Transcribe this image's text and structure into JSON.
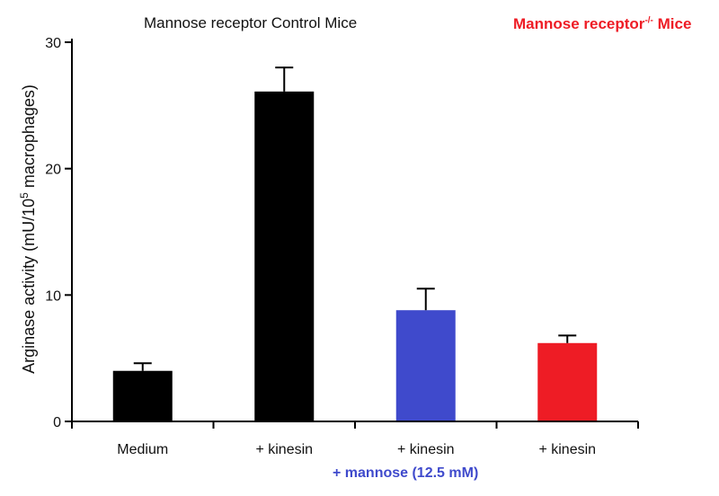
{
  "chart_data": {
    "type": "bar",
    "title_left": "Mannose receptor Control Mice",
    "title_right": {
      "base": "Mannose receptor",
      "superscript": "-/-",
      "suffix": " Mice",
      "color": "#ee1c25"
    },
    "ylabel": {
      "prefix": "Arginase activity  (mU/10",
      "superscript": "5",
      "suffix": " macrophages)"
    },
    "xlabel": "",
    "ylim": [
      0,
      30
    ],
    "yticks": [
      0,
      10,
      20,
      30
    ],
    "categories": [
      "Medium",
      "+ kinesin",
      "+ kinesin",
      "+ kinesin"
    ],
    "values": [
      4.0,
      26.1,
      8.8,
      6.2
    ],
    "errors": [
      0.6,
      1.9,
      1.7,
      0.6
    ],
    "colors": [
      "#000000",
      "#000000",
      "#3f4acc",
      "#ee1c25"
    ],
    "footnote": {
      "text": "+ mannose  (12.5 mM)",
      "color": "#3f4acc"
    }
  }
}
